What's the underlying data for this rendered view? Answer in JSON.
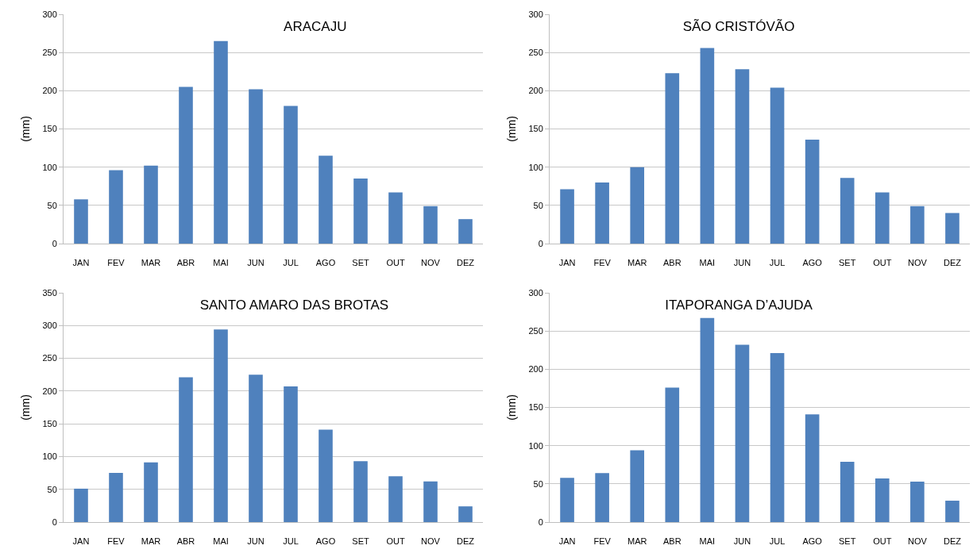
{
  "chart_data": [
    {
      "type": "bar",
      "title": "ARACAJU",
      "ylabel": "(mm)",
      "categories": [
        "JAN",
        "FEV",
        "MAR",
        "ABR",
        "MAI",
        "JUN",
        "JUL",
        "AGO",
        "SET",
        "OUT",
        "NOV",
        "DEZ"
      ],
      "values": [
        58,
        96,
        102,
        205,
        265,
        202,
        180,
        115,
        85,
        67,
        49,
        32
      ],
      "color": "#4f81bd",
      "ylim": [
        0,
        300
      ],
      "yticks": [
        0,
        50,
        100,
        150,
        200,
        250,
        300
      ],
      "grid": "y",
      "legend": false
    },
    {
      "type": "bar",
      "title": "SÃO CRISTÓVÃO",
      "ylabel": "(mm)",
      "categories": [
        "JAN",
        "FEV",
        "MAR",
        "ABR",
        "MAI",
        "JUN",
        "JUL",
        "AGO",
        "SET",
        "OUT",
        "NOV",
        "DEZ"
      ],
      "values": [
        71,
        80,
        100,
        223,
        256,
        228,
        204,
        136,
        86,
        67,
        49,
        40
      ],
      "color": "#4f81bd",
      "ylim": [
        0,
        300
      ],
      "yticks": [
        0,
        50,
        100,
        150,
        200,
        250,
        300
      ],
      "grid": "y",
      "legend": false
    },
    {
      "type": "bar",
      "title": "SANTO AMARO DAS BROTAS",
      "ylabel": "(mm)",
      "categories": [
        "JAN",
        "FEV",
        "MAR",
        "ABR",
        "MAI",
        "JUN",
        "JUL",
        "AGO",
        "SET",
        "OUT",
        "NOV",
        "DEZ"
      ],
      "values": [
        51,
        75,
        91,
        221,
        294,
        225,
        207,
        141,
        93,
        70,
        62,
        24
      ],
      "color": "#4f81bd",
      "ylim": [
        0,
        350
      ],
      "yticks": [
        0,
        50,
        100,
        150,
        200,
        250,
        300,
        350
      ],
      "grid": "y",
      "legend": false
    },
    {
      "type": "bar",
      "title": "ITAPORANGA D’AJUDA",
      "ylabel": "(mm)",
      "categories": [
        "JAN",
        "FEV",
        "MAR",
        "ABR",
        "MAI",
        "JUN",
        "JUL",
        "AGO",
        "SET",
        "OUT",
        "NOV",
        "DEZ"
      ],
      "values": [
        58,
        64,
        94,
        176,
        267,
        232,
        221,
        141,
        79,
        57,
        53,
        28
      ],
      "color": "#4f81bd",
      "ylim": [
        0,
        300
      ],
      "yticks": [
        0,
        50,
        100,
        150,
        200,
        250,
        300
      ],
      "grid": "y",
      "legend": false
    }
  ]
}
